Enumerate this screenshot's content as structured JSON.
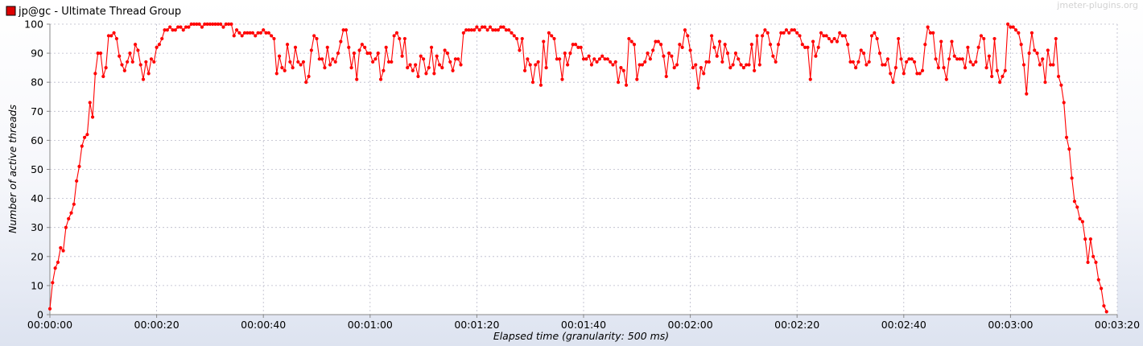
{
  "legend": {
    "label": "jp@gc - Ultimate Thread Group",
    "color": "#dd0000"
  },
  "watermark": "jmeter-plugins.org",
  "chart_data": {
    "type": "line",
    "title": "",
    "xlabel": "Elapsed time (granularity: 500 ms)",
    "ylabel": "Number of active threads",
    "xlim": [
      0,
      200
    ],
    "ylim": [
      0,
      100
    ],
    "x_ticks": [
      0,
      20,
      40,
      60,
      80,
      100,
      120,
      140,
      160,
      180,
      200
    ],
    "x_tick_labels": [
      "00:00:00",
      "00:00:20",
      "00:00:40",
      "00:01:00",
      "00:01:20",
      "00:01:40",
      "00:02:00",
      "00:02:20",
      "00:02:40",
      "00:03:00",
      "00:03:20"
    ],
    "y_ticks": [
      0,
      10,
      20,
      30,
      40,
      50,
      60,
      70,
      80,
      90,
      100
    ],
    "y_tick_labels": [
      "0",
      "10",
      "20",
      "30",
      "40",
      "50",
      "60",
      "70",
      "80",
      "90",
      "100"
    ],
    "grid": true,
    "legend_position": "top-left",
    "series": [
      {
        "name": "jp@gc - Ultimate Thread Group",
        "color": "#ff0000",
        "x_step": 0.5,
        "x_start": 0,
        "values": [
          2,
          11,
          16,
          18,
          23,
          22,
          30,
          33,
          35,
          38,
          46,
          51,
          58,
          61,
          62,
          73,
          68,
          83,
          90,
          90,
          82,
          85,
          96,
          96,
          97,
          95,
          89,
          86,
          84,
          87,
          90,
          87,
          93,
          91,
          86,
          81,
          87,
          83,
          88,
          87,
          92,
          93,
          95,
          98,
          98,
          99,
          98,
          98,
          99,
          99,
          98,
          99,
          99,
          100,
          100,
          100,
          100,
          99,
          100,
          100,
          100,
          100,
          100,
          100,
          100,
          99,
          100,
          100,
          100,
          96,
          98,
          97,
          96,
          97,
          97,
          97,
          97,
          96,
          97,
          97,
          98,
          97,
          97,
          96,
          95,
          83,
          89,
          85,
          84,
          93,
          87,
          85,
          92,
          87,
          86,
          87,
          80,
          82,
          91,
          96,
          95,
          88,
          88,
          85,
          92,
          86,
          88,
          87,
          90,
          94,
          98,
          98,
          92,
          85,
          90,
          81,
          91,
          93,
          92,
          90,
          90,
          87,
          88,
          90,
          81,
          84,
          92,
          87,
          87,
          96,
          97,
          95,
          89,
          95,
          85,
          86,
          84,
          86,
          82,
          89,
          88,
          83,
          85,
          92,
          83,
          89,
          86,
          85,
          91,
          90,
          87,
          84,
          88,
          88,
          86,
          97,
          98,
          98,
          98,
          98,
          99,
          98,
          99,
          99,
          98,
          99,
          98,
          98,
          98,
          99,
          99,
          98,
          98,
          97,
          96,
          95,
          91,
          95,
          84,
          88,
          86,
          80,
          86,
          87,
          79,
          94,
          85,
          97,
          96,
          95,
          88,
          88,
          81,
          90,
          86,
          90,
          93,
          93,
          92,
          92,
          88,
          88,
          89,
          86,
          88,
          87,
          88,
          89,
          88,
          88,
          87,
          86,
          87,
          80,
          85,
          84,
          79,
          95,
          94,
          93,
          81,
          86,
          86,
          87,
          90,
          88,
          91,
          94,
          94,
          93,
          89,
          82,
          90,
          89,
          85,
          86,
          93,
          92,
          98,
          96,
          91,
          85,
          86,
          78,
          85,
          83,
          87,
          87,
          96,
          92,
          89,
          94,
          87,
          93,
          90,
          85,
          86,
          90,
          88,
          86,
          85,
          86,
          86,
          93,
          84,
          96,
          86,
          96,
          98,
          97,
          93,
          89,
          87,
          93,
          97,
          97,
          98,
          97,
          98,
          98,
          97,
          96,
          93,
          92,
          92,
          81,
          94,
          89,
          92,
          97,
          96,
          96,
          95,
          94,
          95,
          94,
          97,
          96,
          96,
          93,
          87,
          87,
          85,
          87,
          91,
          90,
          86,
          87,
          96,
          97,
          95,
          90,
          86,
          86,
          88,
          83,
          80,
          85,
          95,
          88,
          83,
          87,
          88,
          88,
          87,
          83,
          83,
          84,
          93,
          99,
          97,
          97,
          88,
          85,
          94,
          85,
          81,
          88,
          94,
          89,
          88,
          88,
          88,
          85,
          92,
          87,
          86,
          87,
          92,
          96,
          95,
          85,
          89,
          82,
          95,
          84,
          80,
          82,
          84,
          100,
          99,
          99,
          98,
          97,
          93,
          86,
          76,
          90,
          97,
          91,
          90,
          86,
          88,
          80,
          91,
          86,
          86,
          95,
          82,
          79,
          73,
          61,
          57,
          47,
          39,
          37,
          33,
          32,
          26,
          18,
          26,
          20,
          18,
          12,
          9,
          3,
          1
        ]
      }
    ]
  }
}
